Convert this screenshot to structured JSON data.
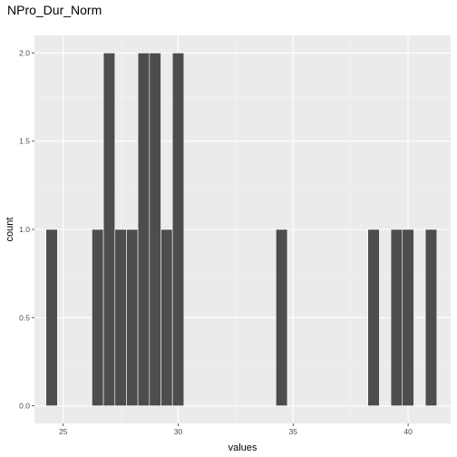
{
  "chart_data": {
    "type": "bar",
    "title": "NPro_Dur_Norm",
    "xlabel": "values",
    "ylabel": "count",
    "xlim": [
      23.75,
      41.85
    ],
    "ylim": [
      -0.1,
      2.1
    ],
    "x_ticks": [
      25,
      30,
      35,
      40
    ],
    "y_ticks": [
      0.0,
      0.5,
      1.0,
      1.5,
      2.0
    ],
    "y_tick_labels": [
      "0.0",
      "0.5",
      "1.0",
      "1.5",
      "2.0"
    ],
    "bin_width": 0.5,
    "bins": [
      {
        "x": 24.5,
        "count": 1
      },
      {
        "x": 26.5,
        "count": 1
      },
      {
        "x": 27.0,
        "count": 2
      },
      {
        "x": 27.5,
        "count": 1
      },
      {
        "x": 28.0,
        "count": 1
      },
      {
        "x": 28.5,
        "count": 2
      },
      {
        "x": 29.0,
        "count": 2
      },
      {
        "x": 29.5,
        "count": 1
      },
      {
        "x": 30.0,
        "count": 2
      },
      {
        "x": 34.5,
        "count": 1
      },
      {
        "x": 38.5,
        "count": 1
      },
      {
        "x": 39.5,
        "count": 1
      },
      {
        "x": 40.0,
        "count": 1
      },
      {
        "x": 41.0,
        "count": 1
      }
    ],
    "colors": {
      "panel": "#ebebeb",
      "grid_major": "#ffffff",
      "grid_minor": "#f5f5f5",
      "bar": "#4d4d4d"
    },
    "grid": true,
    "legend": "none"
  }
}
